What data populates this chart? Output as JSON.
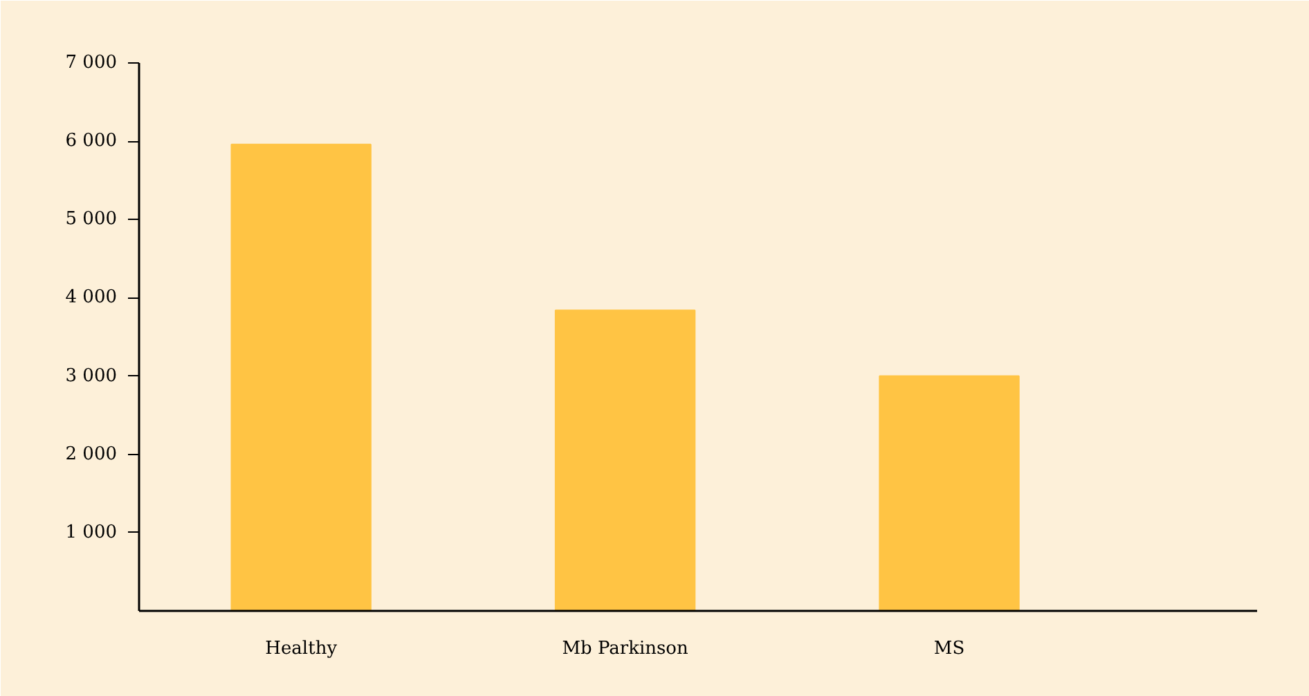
{
  "chart_data": {
    "type": "bar",
    "categories": [
      "Healthy",
      "Mb Parkinson",
      "MS"
    ],
    "values": [
      5960,
      3840,
      3000
    ],
    "color": "#ffc444",
    "ylim": [
      0,
      7000
    ],
    "yticks": [
      {
        "value": 1000,
        "label": "1 000"
      },
      {
        "value": 2000,
        "label": "2 000"
      },
      {
        "value": 3000,
        "label": "3 000"
      },
      {
        "value": 4000,
        "label": "4 000"
      },
      {
        "value": 5000,
        "label": "5 000"
      },
      {
        "value": 6000,
        "label": "6 000"
      },
      {
        "value": 7000,
        "label": "7 000"
      }
    ],
    "grid": false
  }
}
